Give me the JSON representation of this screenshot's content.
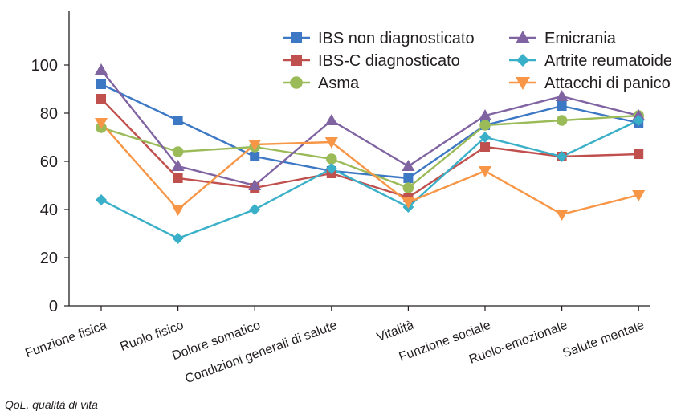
{
  "chart_data": {
    "type": "line",
    "categories": [
      "Funzione fisica",
      "Ruolo fisico",
      "Dolore somatico",
      "Condizioni generali di salute",
      "Vitalità",
      "Funzione sociale",
      "Ruolo-emozionale",
      "Salute mentale"
    ],
    "ylim": [
      0,
      120
    ],
    "yticks": [
      0,
      20,
      40,
      60,
      80,
      100
    ],
    "grid": false,
    "legend_position": "top-right",
    "series": [
      {
        "name": "IBS non diagnosticato",
        "color": "#3c78c4",
        "marker": "square",
        "values": [
          92,
          77,
          62,
          56,
          53,
          75,
          83,
          76
        ]
      },
      {
        "name": "IBS-C diagnosticato",
        "color": "#c0504d",
        "marker": "square",
        "values": [
          86,
          53,
          49,
          55,
          45,
          66,
          62,
          63
        ]
      },
      {
        "name": "Asma",
        "color": "#9bbb59",
        "marker": "circle",
        "values": [
          74,
          64,
          66,
          61,
          49,
          75,
          77,
          79
        ]
      },
      {
        "name": "Emicrania",
        "color": "#8064a2",
        "marker": "triangle-up",
        "values": [
          98,
          58,
          50,
          77,
          58,
          79,
          87,
          79
        ]
      },
      {
        "name": "Artrite reumatoide",
        "color": "#3ab0c8",
        "marker": "diamond",
        "values": [
          44,
          28,
          40,
          57,
          41,
          70,
          62,
          77
        ]
      },
      {
        "name": "Attacchi di panico",
        "color": "#f79646",
        "marker": "triangle-down",
        "values": [
          76,
          40,
          67,
          68,
          43,
          56,
          38,
          46
        ]
      }
    ]
  },
  "footnote": "QoL, qualità di vita"
}
